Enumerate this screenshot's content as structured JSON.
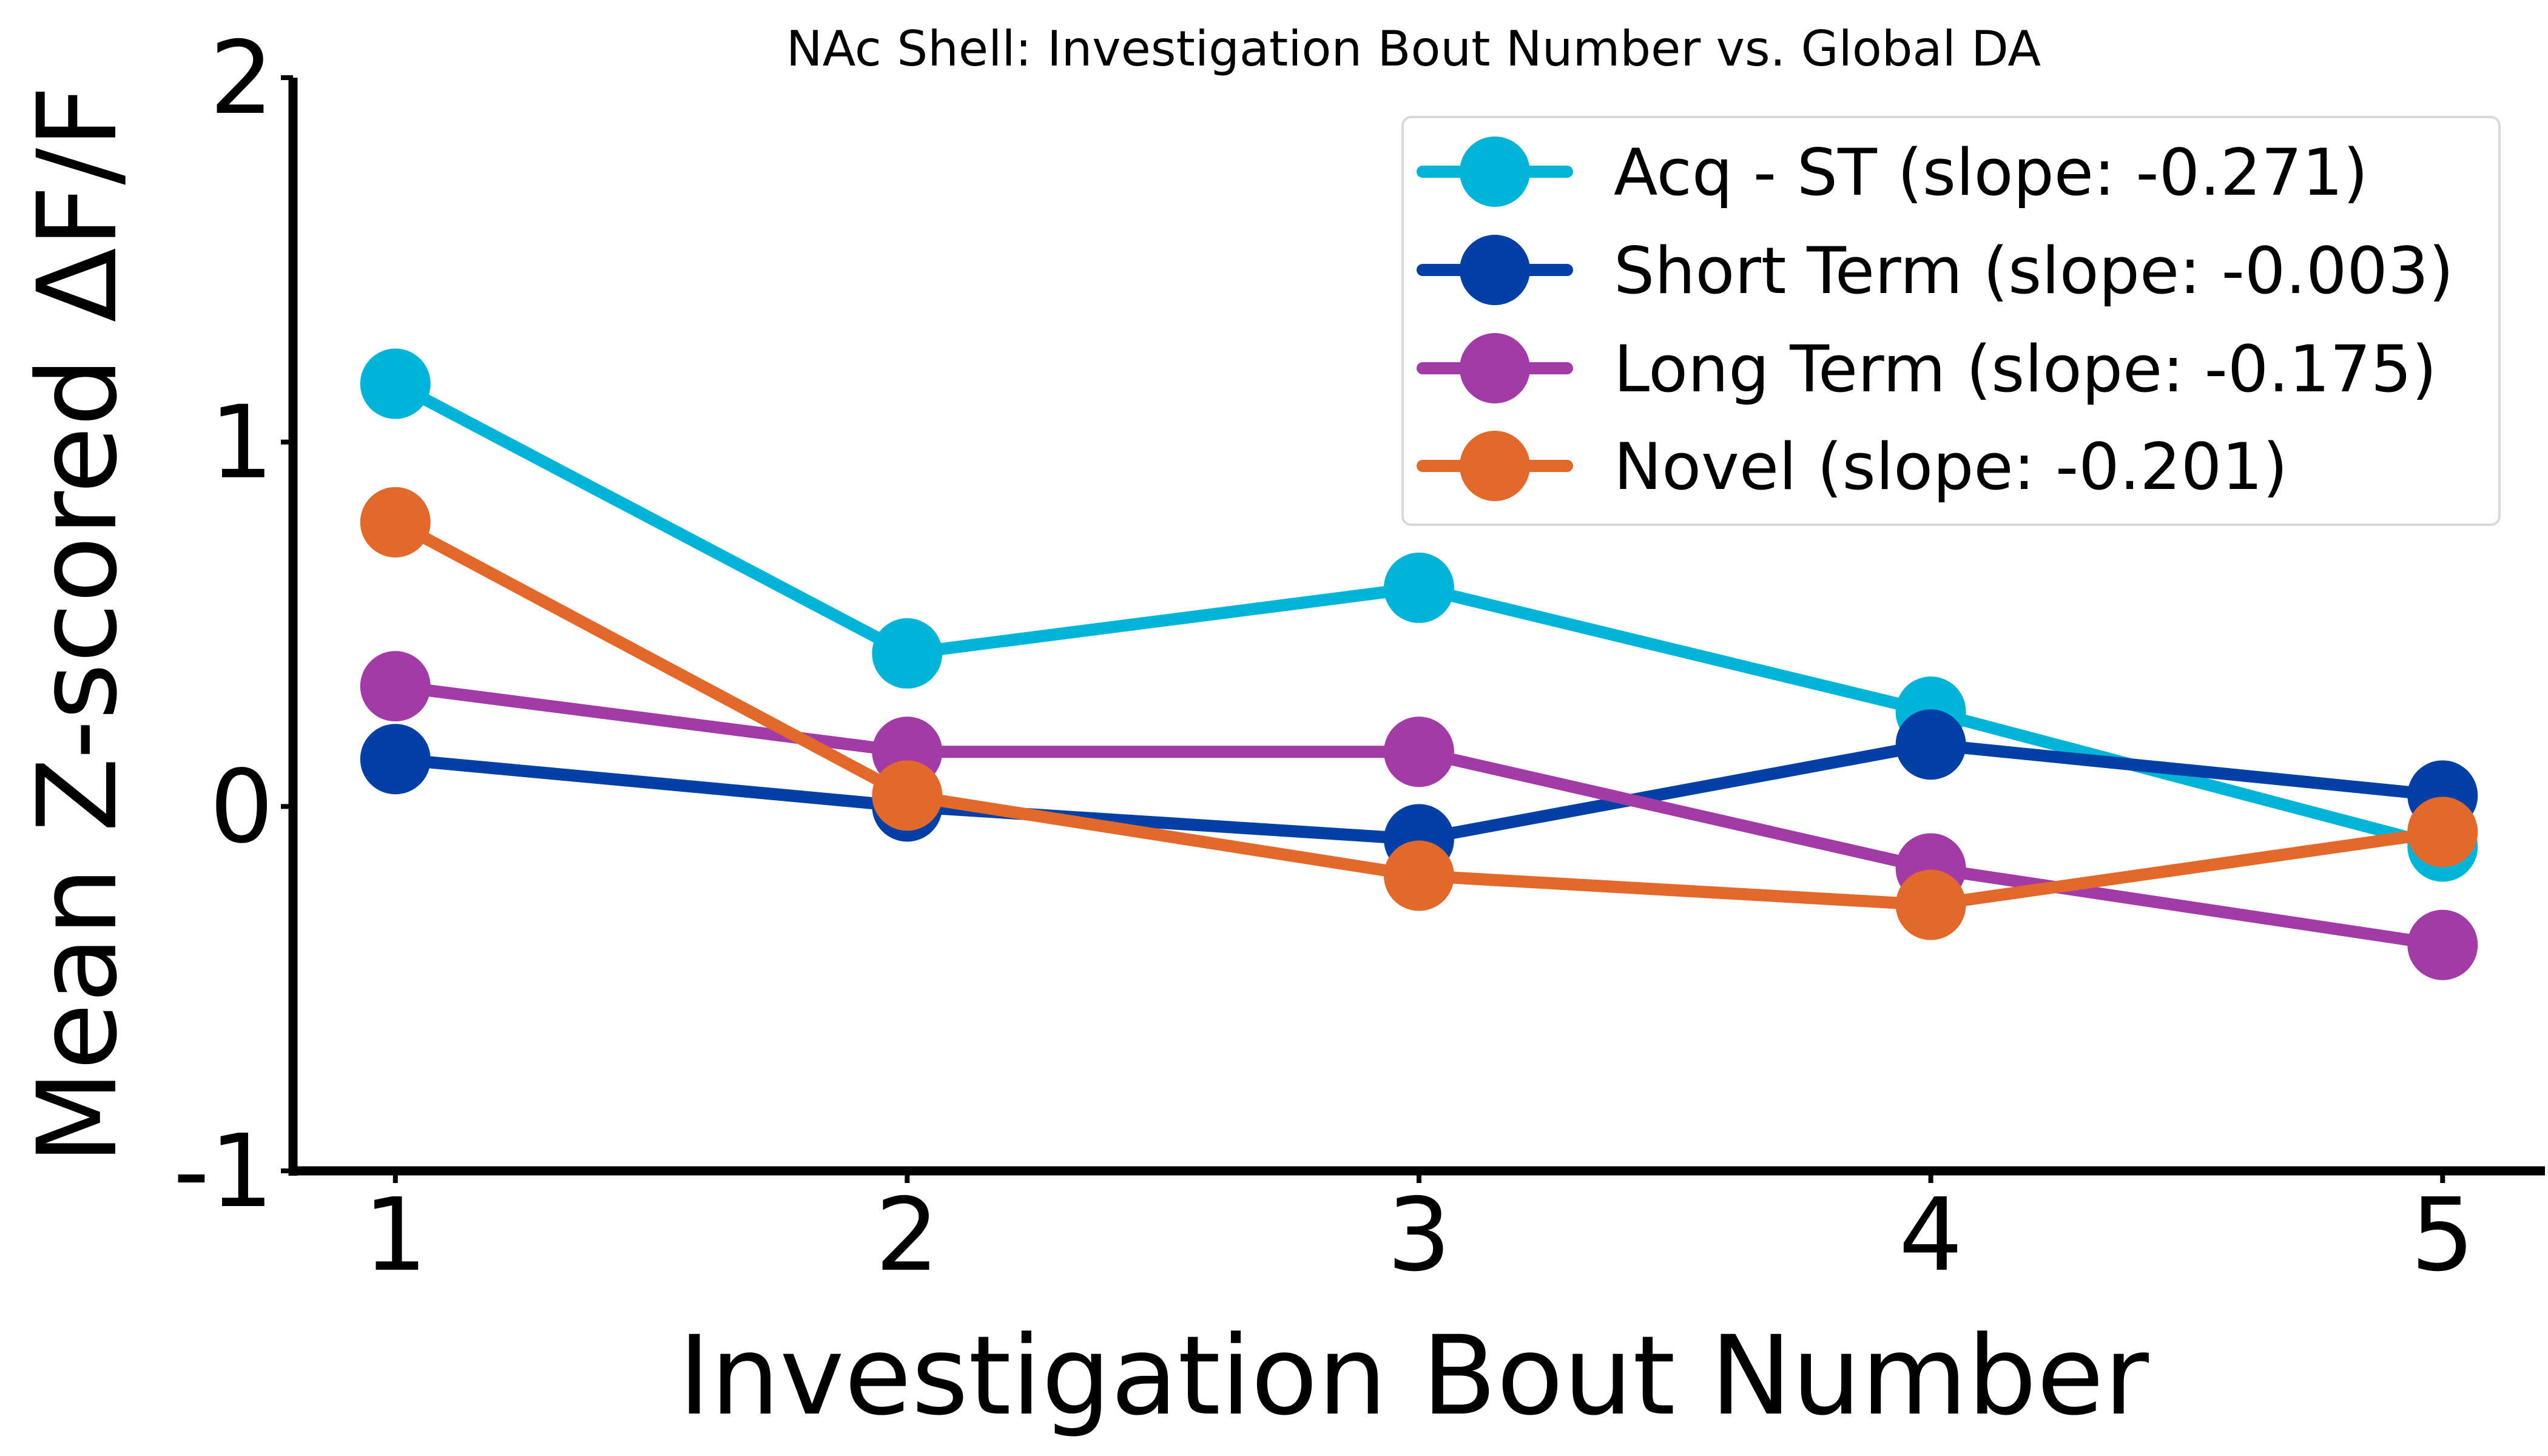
{
  "chart_data": {
    "type": "line",
    "title": "NAc Shell: Investigation Bout Number vs. Global DA",
    "xlabel": "Investigation Bout Number",
    "ylabel": "Mean Z-scored ΔF/F",
    "x": [
      1,
      2,
      3,
      4,
      5
    ],
    "xlim": [
      0.8,
      5.2
    ],
    "ylim": [
      -1,
      2
    ],
    "xticks": [
      "1",
      "2",
      "3",
      "4",
      "5"
    ],
    "yticks": [
      "-1",
      "0",
      "1",
      "2"
    ],
    "grid": false,
    "legend_position": "top-right",
    "series": [
      {
        "name": "Acq - ST (slope: -0.271)",
        "color": "#00b4d8",
        "values": [
          1.16,
          0.42,
          0.6,
          0.26,
          -0.11
        ]
      },
      {
        "name": "Short Term (slope: -0.003)",
        "color": "#0340a6",
        "values": [
          0.13,
          0.0,
          -0.09,
          0.17,
          0.03
        ]
      },
      {
        "name": "Long Term (slope: -0.175)",
        "color": "#a23ba8",
        "values": [
          0.33,
          0.15,
          0.15,
          -0.17,
          -0.38
        ]
      },
      {
        "name": "Novel (slope: -0.201)",
        "color": "#e2692a",
        "values": [
          0.78,
          0.03,
          -0.19,
          -0.27,
          -0.07
        ]
      }
    ]
  }
}
